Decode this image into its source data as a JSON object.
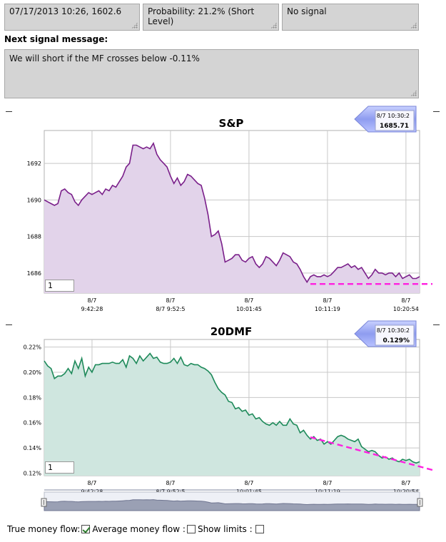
{
  "status": {
    "datetime_price": "07/17/2013 10:26, 1602.6",
    "probability": "Probability: 21.2% (Short Level)",
    "signal": "No signal"
  },
  "next_signal": {
    "label": "Next signal message:",
    "message": "We will short if  the MF crosses below -0.11%"
  },
  "charts": {
    "sp": {
      "title": "S&P",
      "callout_time": "8/7 10:30:2",
      "callout_value": "1685.71",
      "input_value": "1",
      "fill": "#e2d3ea",
      "line": "#7a1f8a"
    },
    "mf": {
      "title": "20DMF",
      "callout_time": "8/7 10:30:2",
      "callout_value": "0.129%",
      "input_value": "1",
      "fill": "#cfe6df",
      "line": "#1e8a5a"
    }
  },
  "footer": {
    "true_mf_label": "True money flow:",
    "true_mf_checked": true,
    "avg_mf_label": "Average money flow :",
    "avg_mf_checked": false,
    "show_limits_label": "Show limits :",
    "show_limits_checked": false
  },
  "chart_data": [
    {
      "type": "area",
      "title": "S&P",
      "ylim": [
        1684.9,
        1693.8
      ],
      "y_ticks": [
        "1692",
        "1690",
        "1688",
        "1686"
      ],
      "y_tick_values": [
        1692,
        1690,
        1688,
        1686
      ],
      "x_ticks": [
        {
          "date": "8/7",
          "time": "9:42:28",
          "index": 14
        },
        {
          "date": "8/7",
          "time": "8/7 9:52:5",
          "index": 37
        },
        {
          "date": "8/7",
          "time": "10:01:45",
          "index": 60
        },
        {
          "date": "8/7",
          "time": "10:11:19",
          "index": 83
        },
        {
          "date": "8/7",
          "time": "10:20:54",
          "index": 106
        }
      ],
      "grid": true,
      "values": [
        1690.0,
        1689.9,
        1689.8,
        1689.7,
        1689.8,
        1690.5,
        1690.6,
        1690.4,
        1690.3,
        1689.9,
        1689.7,
        1690.0,
        1690.2,
        1690.4,
        1690.3,
        1690.4,
        1690.5,
        1690.3,
        1690.6,
        1690.5,
        1690.8,
        1690.7,
        1691.0,
        1691.3,
        1691.8,
        1692.0,
        1693.0,
        1693.0,
        1692.9,
        1692.8,
        1692.9,
        1692.8,
        1693.1,
        1692.5,
        1692.2,
        1692.0,
        1691.8,
        1691.3,
        1690.9,
        1691.2,
        1690.8,
        1691.0,
        1691.4,
        1691.3,
        1691.1,
        1690.9,
        1690.8,
        1690.1,
        1689.2,
        1688.0,
        1688.1,
        1688.3,
        1687.6,
        1686.6,
        1686.7,
        1686.8,
        1687.0,
        1687.0,
        1686.7,
        1686.6,
        1686.8,
        1686.9,
        1686.5,
        1686.3,
        1686.5,
        1686.9,
        1686.8,
        1686.6,
        1686.4,
        1686.7,
        1687.1,
        1687.0,
        1686.9,
        1686.6,
        1686.5,
        1686.2,
        1685.8,
        1685.5,
        1685.8,
        1685.9,
        1685.8,
        1685.8,
        1685.9,
        1685.8,
        1685.9,
        1686.1,
        1686.3,
        1686.3,
        1686.4,
        1686.5,
        1686.3,
        1686.4,
        1686.2,
        1686.3,
        1686.0,
        1685.7,
        1685.9,
        1686.2,
        1686.0,
        1686.0,
        1685.9,
        1686.0,
        1686.0,
        1685.8,
        1686.0,
        1685.7,
        1685.8,
        1685.9,
        1685.7,
        1685.7,
        1685.8
      ],
      "trend_line": {
        "from": [
          78,
          1685.4
        ],
        "to": [
          117,
          1685.4
        ]
      }
    },
    {
      "type": "area",
      "title": "20DMF",
      "ylim": [
        0.118,
        0.226
      ],
      "y_ticks": [
        "0.22%",
        "0.20%",
        "0.18%",
        "0.16%",
        "0.14%",
        "0.12%"
      ],
      "y_tick_values": [
        0.22,
        0.2,
        0.18,
        0.16,
        0.14,
        0.12
      ],
      "x_ticks": [
        {
          "date": "8/7",
          "time": "9:42:28",
          "index": 14
        },
        {
          "date": "8/7",
          "time": "8/7 9:52:5",
          "index": 37
        },
        {
          "date": "8/7",
          "time": "10:01:45",
          "index": 60
        },
        {
          "date": "8/7",
          "time": "10:11:19",
          "index": 83
        },
        {
          "date": "8/7",
          "time": "10:20:54",
          "index": 106
        }
      ],
      "grid": true,
      "values": [
        0.209,
        0.205,
        0.203,
        0.195,
        0.197,
        0.197,
        0.199,
        0.203,
        0.199,
        0.209,
        0.203,
        0.211,
        0.197,
        0.204,
        0.2,
        0.206,
        0.206,
        0.207,
        0.207,
        0.207,
        0.208,
        0.207,
        0.207,
        0.21,
        0.204,
        0.213,
        0.211,
        0.207,
        0.213,
        0.209,
        0.212,
        0.215,
        0.211,
        0.212,
        0.208,
        0.207,
        0.207,
        0.208,
        0.211,
        0.207,
        0.212,
        0.206,
        0.205,
        0.207,
        0.206,
        0.206,
        0.204,
        0.203,
        0.201,
        0.198,
        0.192,
        0.187,
        0.184,
        0.182,
        0.177,
        0.176,
        0.171,
        0.172,
        0.169,
        0.17,
        0.166,
        0.167,
        0.163,
        0.164,
        0.161,
        0.159,
        0.158,
        0.16,
        0.158,
        0.161,
        0.158,
        0.158,
        0.163,
        0.159,
        0.158,
        0.152,
        0.154,
        0.15,
        0.147,
        0.149,
        0.146,
        0.147,
        0.143,
        0.145,
        0.143,
        0.146,
        0.149,
        0.15,
        0.149,
        0.147,
        0.146,
        0.145,
        0.147,
        0.141,
        0.139,
        0.137,
        0.138,
        0.137,
        0.134,
        0.132,
        0.133,
        0.131,
        0.132,
        0.13,
        0.129,
        0.131,
        0.13,
        0.131,
        0.129,
        0.128,
        0.129
      ],
      "trend_line": {
        "from": [
          78,
          0.1485
        ],
        "to": [
          117,
          0.1225
        ]
      }
    }
  ]
}
